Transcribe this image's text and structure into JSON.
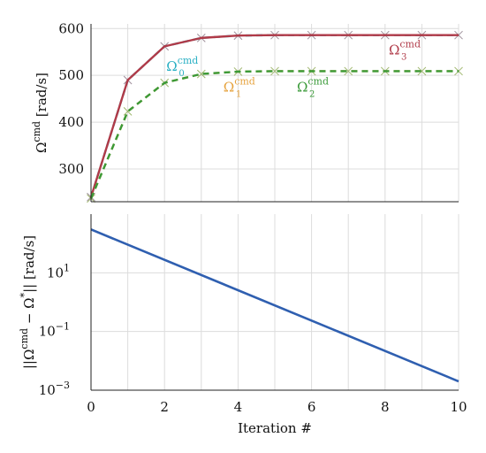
{
  "chart_data": [
    {
      "type": "line",
      "ylabel": "Ω^cmd [rad/s]",
      "ylim": [
        230,
        610
      ],
      "yticks": [
        300,
        400,
        500,
        600
      ],
      "xlim": [
        0,
        10
      ],
      "grid": true,
      "x": [
        0,
        1,
        2,
        3,
        4,
        5,
        6,
        7,
        8,
        9,
        10
      ],
      "series": [
        {
          "name": "Ω0^cmd",
          "color": "#2ab0c4",
          "dash": "dashed",
          "values": [
            240,
            490,
            562,
            580,
            585,
            586,
            586,
            586,
            586,
            586,
            586
          ]
        },
        {
          "name": "Ω1^cmd",
          "color": "#e6a23c",
          "dash": "dashed",
          "values": [
            237,
            423,
            484,
            503,
            508,
            509,
            509,
            509,
            509,
            509,
            509
          ]
        },
        {
          "name": "Ω2^cmd",
          "color": "#3a9a38",
          "dash": "dashed",
          "values": [
            237,
            423,
            484,
            503,
            508,
            509,
            509,
            509,
            509,
            509,
            509
          ]
        },
        {
          "name": "Ω3^cmd",
          "color": "#b03a48",
          "dash": "solid",
          "values": [
            240,
            490,
            562,
            580,
            585,
            586,
            586,
            586,
            586,
            586,
            586
          ]
        }
      ],
      "annotations": [
        {
          "label": "Ω",
          "sup": "cmd",
          "sub": "0",
          "color": "#2ab0c4",
          "x": 2.05,
          "y": 510
        },
        {
          "label": "Ω",
          "sup": "cmd",
          "sub": "1",
          "color": "#e6a23c",
          "x": 3.6,
          "y": 465
        },
        {
          "label": "Ω",
          "sup": "cmd",
          "sub": "2",
          "color": "#3a9a38",
          "x": 5.6,
          "y": 465
        },
        {
          "label": "Ω",
          "sup": "cmd",
          "sub": "3",
          "color": "#b03a48",
          "x": 8.1,
          "y": 545
        }
      ]
    },
    {
      "type": "line",
      "scale": "log",
      "ylabel": "||Ω^cmd − Ω*|| [rad/s]",
      "xlabel": "Iteration #",
      "xlim": [
        0,
        10
      ],
      "xticks": [
        0,
        2,
        4,
        6,
        8,
        10
      ],
      "ylim": [
        0.001,
        1000
      ],
      "yticks": [
        {
          "base": "10",
          "exp": "1",
          "v": 10
        },
        {
          "base": "10",
          "exp": "−1",
          "v": 0.1
        },
        {
          "base": "10",
          "exp": "−3",
          "v": 0.001
        }
      ],
      "grid": true,
      "series": [
        {
          "name": "",
          "color": "#2f5fb0",
          "x": [
            0,
            10
          ],
          "values": [
            300,
            0.002
          ]
        }
      ]
    }
  ]
}
